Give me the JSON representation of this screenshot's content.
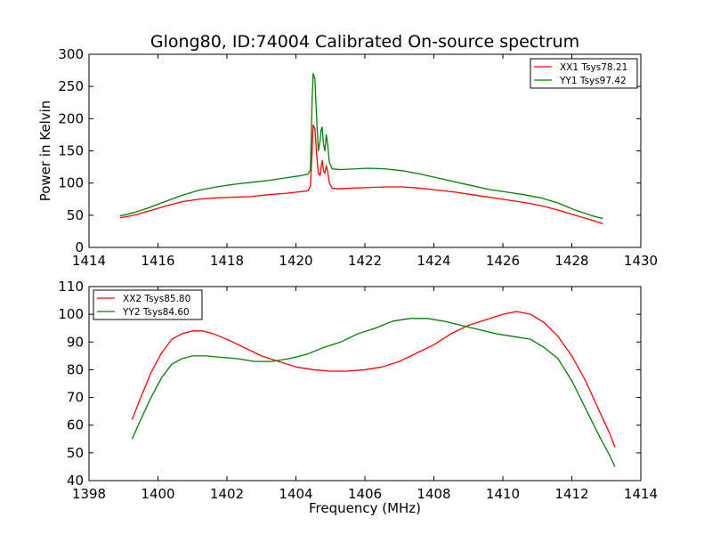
{
  "figure": {
    "title": "Glong80, ID:74004 Calibrated On-source spectrum"
  },
  "chart_data": [
    {
      "type": "line",
      "title": "Glong80, ID:74004 Calibrated On-source spectrum",
      "xlabel": "",
      "ylabel": "Power in Kelvin",
      "xlim": [
        1414,
        1430
      ],
      "ylim": [
        0,
        300
      ],
      "xticks": [
        1414,
        1416,
        1418,
        1420,
        1422,
        1424,
        1426,
        1428,
        1430
      ],
      "yticks": [
        0,
        50,
        100,
        150,
        200,
        250,
        300
      ],
      "legend_position": "top-right",
      "series": [
        {
          "name": "XX1 Tsys78.21",
          "color": "#ff0000",
          "points": [
            [
              1414.9,
              46
            ],
            [
              1415.3,
              50
            ],
            [
              1415.7,
              56
            ],
            [
              1416.2,
              64
            ],
            [
              1416.7,
              71
            ],
            [
              1417.2,
              75
            ],
            [
              1417.7,
              77
            ],
            [
              1418.2,
              78
            ],
            [
              1418.7,
              79
            ],
            [
              1419.2,
              82
            ],
            [
              1419.7,
              84
            ],
            [
              1420.2,
              87
            ],
            [
              1420.35,
              88
            ],
            [
              1420.42,
              95
            ],
            [
              1420.47,
              150
            ],
            [
              1420.5,
              190
            ],
            [
              1420.55,
              185
            ],
            [
              1420.6,
              145
            ],
            [
              1420.65,
              115
            ],
            [
              1420.7,
              112
            ],
            [
              1420.73,
              125
            ],
            [
              1420.76,
              135
            ],
            [
              1420.8,
              120
            ],
            [
              1420.84,
              115
            ],
            [
              1420.88,
              127
            ],
            [
              1420.92,
              118
            ],
            [
              1420.97,
              100
            ],
            [
              1421.05,
              92
            ],
            [
              1421.2,
              91
            ],
            [
              1421.6,
              92
            ],
            [
              1422.1,
              93
            ],
            [
              1422.6,
              94
            ],
            [
              1423.1,
              94
            ],
            [
              1423.6,
              92
            ],
            [
              1424.1,
              89
            ],
            [
              1424.6,
              86
            ],
            [
              1425.1,
              82
            ],
            [
              1425.6,
              78
            ],
            [
              1426.1,
              74
            ],
            [
              1426.6,
              70
            ],
            [
              1427.1,
              65
            ],
            [
              1427.6,
              58
            ],
            [
              1428.1,
              50
            ],
            [
              1428.6,
              42
            ],
            [
              1428.9,
              37
            ]
          ]
        },
        {
          "name": "YY1 Tsys97.42",
          "color": "#008000",
          "points": [
            [
              1414.9,
              49
            ],
            [
              1415.3,
              54
            ],
            [
              1415.7,
              61
            ],
            [
              1416.2,
              71
            ],
            [
              1416.7,
              81
            ],
            [
              1417.2,
              89
            ],
            [
              1417.7,
              94
            ],
            [
              1418.2,
              98
            ],
            [
              1418.7,
              101
            ],
            [
              1419.2,
              104
            ],
            [
              1419.7,
              108
            ],
            [
              1420.2,
              112
            ],
            [
              1420.35,
              114
            ],
            [
              1420.42,
              120
            ],
            [
              1420.47,
              230
            ],
            [
              1420.5,
              270
            ],
            [
              1420.55,
              262
            ],
            [
              1420.6,
              200
            ],
            [
              1420.65,
              150
            ],
            [
              1420.7,
              165
            ],
            [
              1420.73,
              182
            ],
            [
              1420.76,
              187
            ],
            [
              1420.8,
              160
            ],
            [
              1420.84,
              150
            ],
            [
              1420.88,
              175
            ],
            [
              1420.92,
              160
            ],
            [
              1420.97,
              132
            ],
            [
              1421.05,
              122
            ],
            [
              1421.3,
              121
            ],
            [
              1421.7,
              122
            ],
            [
              1422.1,
              123
            ],
            [
              1422.6,
              122
            ],
            [
              1423.1,
              119
            ],
            [
              1423.6,
              114
            ],
            [
              1424.1,
              108
            ],
            [
              1424.6,
              102
            ],
            [
              1425.1,
              96
            ],
            [
              1425.6,
              90
            ],
            [
              1426.1,
              86
            ],
            [
              1426.6,
              82
            ],
            [
              1427.1,
              77
            ],
            [
              1427.6,
              69
            ],
            [
              1428.1,
              58
            ],
            [
              1428.6,
              49
            ],
            [
              1428.9,
              45
            ]
          ]
        }
      ]
    },
    {
      "type": "line",
      "title": "",
      "xlabel": "Frequency (MHz)",
      "ylabel": "",
      "xlim": [
        1398,
        1414
      ],
      "ylim": [
        40,
        110
      ],
      "xticks": [
        1398,
        1400,
        1402,
        1404,
        1406,
        1408,
        1410,
        1412,
        1414
      ],
      "yticks": [
        40,
        50,
        60,
        70,
        80,
        90,
        100,
        110
      ],
      "legend_position": "top-left",
      "series": [
        {
          "name": "XX2 Tsys85.80",
          "color": "#ff0000",
          "points": [
            [
              1399.25,
              62
            ],
            [
              1399.5,
              70
            ],
            [
              1399.8,
              79
            ],
            [
              1400.1,
              86
            ],
            [
              1400.4,
              91
            ],
            [
              1400.7,
              93
            ],
            [
              1401.0,
              94
            ],
            [
              1401.3,
              94
            ],
            [
              1401.6,
              93
            ],
            [
              1402.0,
              91
            ],
            [
              1402.5,
              88
            ],
            [
              1403.0,
              85
            ],
            [
              1403.5,
              83
            ],
            [
              1404.0,
              81
            ],
            [
              1404.5,
              80
            ],
            [
              1405.0,
              79.5
            ],
            [
              1405.5,
              79.5
            ],
            [
              1406.0,
              80
            ],
            [
              1406.5,
              81
            ],
            [
              1407.0,
              83
            ],
            [
              1407.5,
              86
            ],
            [
              1408.0,
              89
            ],
            [
              1408.5,
              93
            ],
            [
              1409.0,
              96
            ],
            [
              1409.5,
              98
            ],
            [
              1410.0,
              100
            ],
            [
              1410.4,
              101
            ],
            [
              1410.8,
              100
            ],
            [
              1411.2,
              97
            ],
            [
              1411.6,
              92
            ],
            [
              1412.0,
              85
            ],
            [
              1412.4,
              76
            ],
            [
              1412.8,
              65
            ],
            [
              1413.1,
              57
            ],
            [
              1413.25,
              52
            ]
          ]
        },
        {
          "name": "YY2 Tsys84.60",
          "color": "#008000",
          "points": [
            [
              1399.25,
              55
            ],
            [
              1399.5,
              62
            ],
            [
              1399.8,
              70
            ],
            [
              1400.1,
              77
            ],
            [
              1400.4,
              82
            ],
            [
              1400.7,
              84
            ],
            [
              1401.0,
              85
            ],
            [
              1401.4,
              85
            ],
            [
              1401.8,
              84.5
            ],
            [
              1402.3,
              84
            ],
            [
              1402.8,
              83
            ],
            [
              1403.3,
              83
            ],
            [
              1403.8,
              84
            ],
            [
              1404.3,
              85.5
            ],
            [
              1404.8,
              88
            ],
            [
              1405.3,
              90
            ],
            [
              1405.8,
              93
            ],
            [
              1406.3,
              95
            ],
            [
              1406.8,
              97.5
            ],
            [
              1407.3,
              98.5
            ],
            [
              1407.8,
              98.5
            ],
            [
              1408.3,
              97.5
            ],
            [
              1408.8,
              96
            ],
            [
              1409.3,
              94.5
            ],
            [
              1409.8,
              93
            ],
            [
              1410.3,
              92
            ],
            [
              1410.8,
              91
            ],
            [
              1411.2,
              88
            ],
            [
              1411.6,
              84
            ],
            [
              1412.0,
              76
            ],
            [
              1412.4,
              66
            ],
            [
              1412.8,
              56
            ],
            [
              1413.1,
              49
            ],
            [
              1413.25,
              45
            ]
          ]
        }
      ]
    }
  ]
}
